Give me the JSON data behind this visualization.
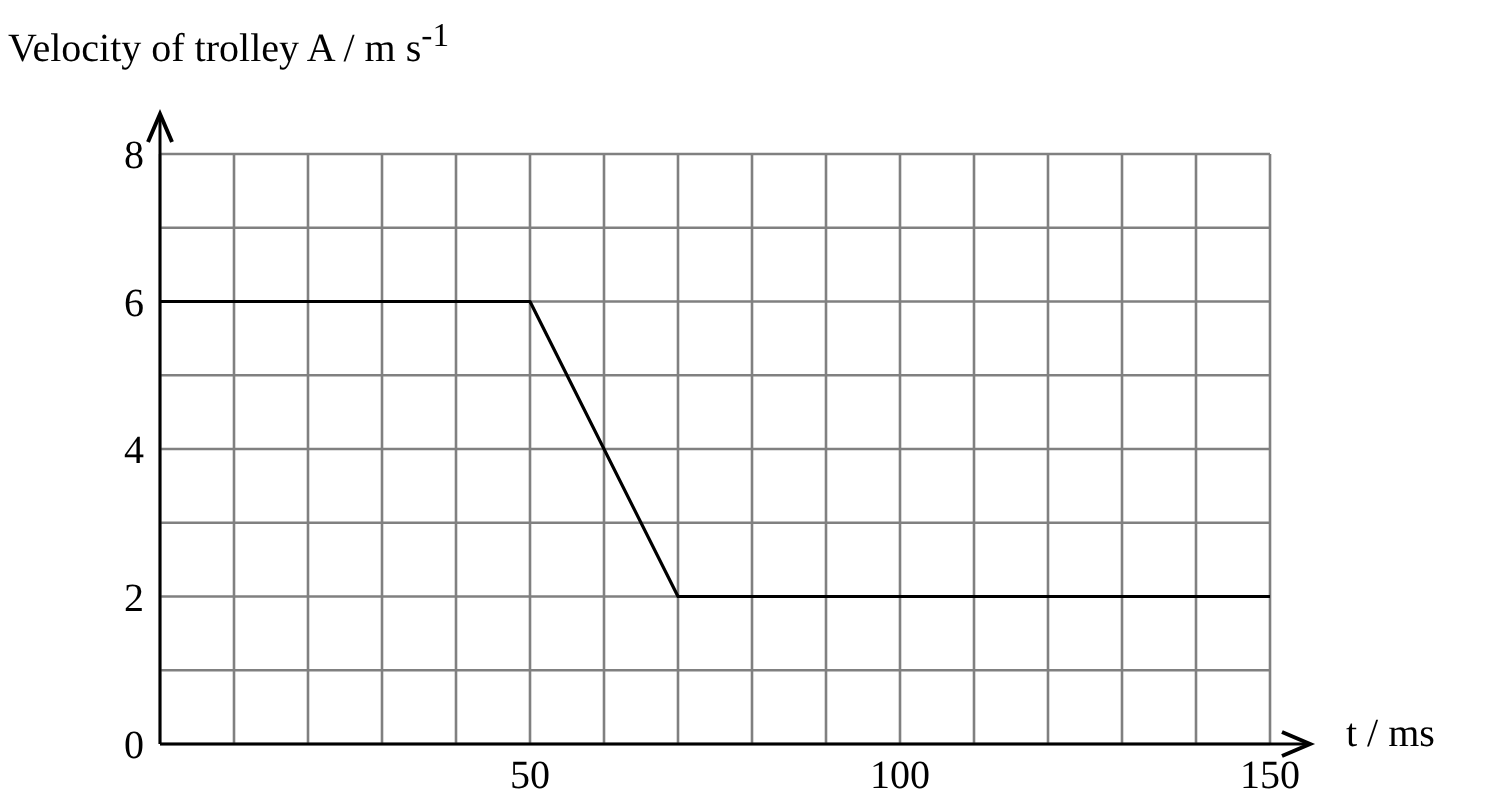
{
  "chart_data": {
    "type": "line",
    "xlabel": "t / ms",
    "ylabel": "Velocity of trolley A / m s$^{-1}$",
    "x": [
      0,
      50,
      70,
      150
    ],
    "series": [
      {
        "color": "#000000",
        "values": [
          6,
          6,
          2,
          2
        ]
      }
    ],
    "xlim": [
      0,
      150
    ],
    "xticks": [
      {
        "value": 10,
        "label": null
      },
      {
        "value": 20,
        "label": null
      },
      {
        "value": 30,
        "label": null
      },
      {
        "value": 40,
        "label": null
      },
      50,
      {
        "value": 60,
        "label": null
      },
      {
        "value": 70,
        "label": null
      },
      {
        "value": 80,
        "label": null
      },
      {
        "value": 90,
        "label": null
      },
      100,
      {
        "value": 110,
        "label": null
      },
      {
        "value": 120,
        "label": null
      },
      {
        "value": 130,
        "label": null
      },
      {
        "value": 140,
        "label": null
      },
      150
    ],
    "ylim": [
      0,
      8
    ],
    "yticks": [
      0,
      {
        "value": 1,
        "label": null
      },
      2,
      {
        "value": 3,
        "label": null
      },
      4,
      {
        "value": 5,
        "label": null
      },
      6,
      {
        "value": 7,
        "label": null
      },
      8
    ],
    "grid": true,
    "marker": "none",
    "line_style": "solid"
  }
}
